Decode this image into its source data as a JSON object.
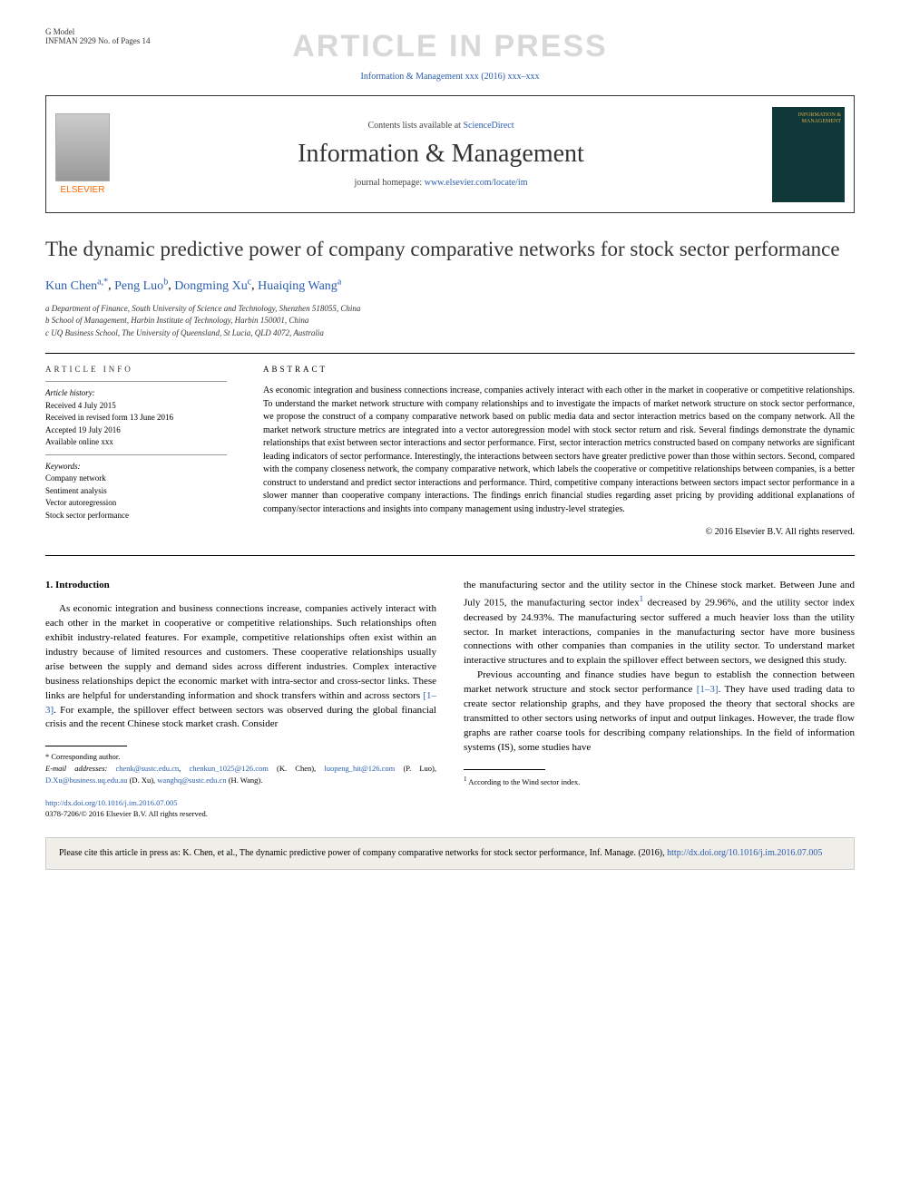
{
  "header": {
    "gmodel": "G Model",
    "ref_code": "INFMAN 2929 No. of Pages 14",
    "watermark": "ARTICLE IN PRESS",
    "journal_ref": "Information & Management xxx (2016) xxx–xxx",
    "contents_prefix": "Contents lists available at ",
    "sciencedirect": "ScienceDirect",
    "journal_title": "Information & Management",
    "homepage_prefix": "journal homepage: ",
    "homepage_url": "www.elsevier.com/locate/im",
    "elsevier": "ELSEVIER",
    "cover_text": "INFORMATION & MANAGEMENT"
  },
  "article": {
    "title": "The dynamic predictive power of company comparative networks for stock sector performance",
    "authors": [
      {
        "name": "Kun Chen",
        "sup": "a,*"
      },
      {
        "name": "Peng Luo",
        "sup": "b"
      },
      {
        "name": "Dongming Xu",
        "sup": "c"
      },
      {
        "name": "Huaiqing Wang",
        "sup": "a"
      }
    ],
    "affiliations": [
      "a Department of Finance, South University of Science and Technology, Shenzhen 518055, China",
      "b School of Management, Harbin Institute of Technology, Harbin 150001, China",
      "c UQ Business School, The University of Queensland, St Lucia, QLD 4072, Australia"
    ]
  },
  "info": {
    "heading": "ARTICLE INFO",
    "history_label": "Article history:",
    "received": "Received 4 July 2015",
    "revised": "Received in revised form 13 June 2016",
    "accepted": "Accepted 19 July 2016",
    "online": "Available online xxx",
    "keywords_label": "Keywords:",
    "keywords": [
      "Company network",
      "Sentiment analysis",
      "Vector autoregression",
      "Stock sector performance"
    ]
  },
  "abstract": {
    "heading": "ABSTRACT",
    "text": "As economic integration and business connections increase, companies actively interact with each other in the market in cooperative or competitive relationships. To understand the market network structure with company relationships and to investigate the impacts of market network structure on stock sector performance, we propose the construct of a company comparative network based on public media data and sector interaction metrics based on the company network. All the market network structure metrics are integrated into a vector autoregression model with stock sector return and risk. Several findings demonstrate the dynamic relationships that exist between sector interactions and sector performance. First, sector interaction metrics constructed based on company networks are significant leading indicators of sector performance. Interestingly, the interactions between sectors have greater predictive power than those within sectors. Second, compared with the company closeness network, the company comparative network, which labels the cooperative or competitive relationships between companies, is a better construct to understand and predict sector interactions and performance. Third, competitive company interactions between sectors impact sector performance in a slower manner than cooperative company interactions. The findings enrich financial studies regarding asset pricing by providing additional explanations of company/sector interactions and insights into company management using industry-level strategies.",
    "copyright": "© 2016 Elsevier B.V. All rights reserved."
  },
  "body": {
    "section_heading": "1. Introduction",
    "col1_para": "As economic integration and business connections increase, companies actively interact with each other in the market in cooperative or competitive relationships. Such relationships often exhibit industry-related features. For example, competitive relationships often exist within an industry because of limited resources and customers. These cooperative relationships usually arise between the supply and demand sides across different industries. Complex interactive business relationships depict the economic market with intra-sector and cross-sector links. These links are helpful for understanding information and shock transfers within and across sectors ",
    "col1_ref": "[1–3]",
    "col1_para_cont": ". For example, the spillover effect between sectors was observed during the global financial crisis and the recent Chinese stock market crash. Consider",
    "col2_para1": "the manufacturing sector and the utility sector in the Chinese stock market. Between June and July 2015, the manufacturing sector index",
    "col2_fn_marker": "1",
    "col2_para1_cont": " decreased by 29.96%, and the utility sector index decreased by 24.93%. The manufacturing sector suffered a much heavier loss than the utility sector. In market interactions, companies in the manufacturing sector have more business connections with other companies than companies in the utility sector. To understand market interactive structures and to explain the spillover effect between sectors, we designed this study.",
    "col2_para2": "Previous accounting and finance studies have begun to establish the connection between market network structure and stock sector performance ",
    "col2_ref": "[1–3]",
    "col2_para2_cont": ". They have used trading data to create sector relationship graphs, and they have proposed the theory that sectoral shocks are transmitted to other sectors using networks of input and output linkages. However, the trade flow graphs are rather coarse tools for describing company relationships. In the field of information systems (IS), some studies have"
  },
  "footnotes": {
    "corresponding": "* Corresponding author.",
    "email_label": "E-mail addresses: ",
    "emails": [
      {
        "addr": "chenk@sustc.edu.cn",
        "suffix": ", "
      },
      {
        "addr": "chenkun_1025@126.com",
        "suffix": " (K. Chen), "
      },
      {
        "addr": "luopeng_hit@126.com",
        "suffix": " (P. Luo), "
      },
      {
        "addr": "D.Xu@business.uq.edu.au",
        "suffix": " (D. Xu), "
      },
      {
        "addr": "wanghq@sustc.edu.cn",
        "suffix": " (H. Wang)."
      }
    ],
    "right_footnote": "1 According to the Wind sector index."
  },
  "doi": {
    "url": "http://dx.doi.org/10.1016/j.im.2016.07.005",
    "issn": "0378-7206/© 2016 Elsevier B.V. All rights reserved."
  },
  "citebox": {
    "text": "Please cite this article in press as: K. Chen, et al., The dynamic predictive power of company comparative networks for stock sector performance, Inf. Manage. (2016), ",
    "link": "http://dx.doi.org/10.1016/j.im.2016.07.005"
  },
  "colors": {
    "link": "#2a5db0",
    "watermark": "#d8d8d8",
    "elsevier_orange": "#ff6600",
    "cover_bg": "#103838",
    "cover_gold": "#d4a84c",
    "citebox_bg": "#efeee9"
  }
}
